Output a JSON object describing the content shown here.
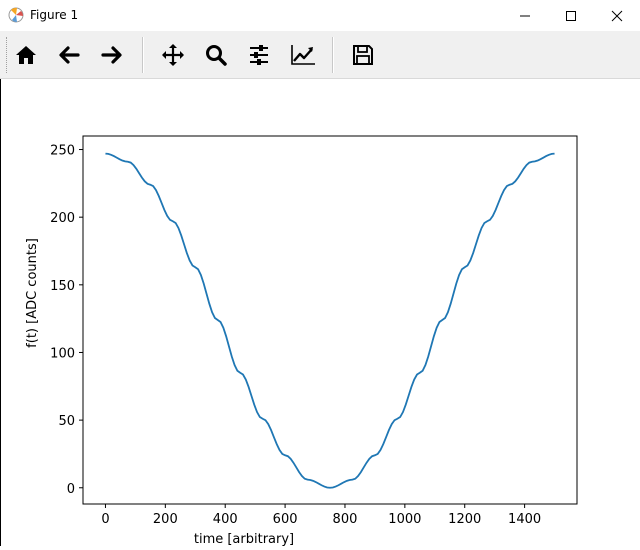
{
  "window": {
    "title": "Figure 1",
    "controls": [
      "minimize",
      "maximize",
      "close"
    ]
  },
  "toolbar": {
    "buttons": [
      {
        "name": "home",
        "icon": "home-icon"
      },
      {
        "name": "back",
        "icon": "arrow-left-icon"
      },
      {
        "name": "forward",
        "icon": "arrow-right-icon"
      },
      {
        "name": "pan",
        "icon": "move-icon"
      },
      {
        "name": "zoom",
        "icon": "magnifier-icon"
      },
      {
        "name": "subplots",
        "icon": "sliders-icon"
      },
      {
        "name": "customize",
        "icon": "chart-line-icon"
      },
      {
        "name": "save",
        "icon": "floppy-disk-icon"
      }
    ]
  },
  "chart_data": {
    "type": "line",
    "title": "",
    "xlabel": "time [arbitrary]",
    "ylabel": "f(t) [ADC counts]",
    "xlim": [
      -75,
      1575
    ],
    "ylim": [
      -12,
      260
    ],
    "xticks": [
      0,
      200,
      400,
      600,
      800,
      1000,
      1200,
      1400
    ],
    "yticks": [
      0,
      50,
      100,
      150,
      200,
      250
    ],
    "xticklabels": [
      "0",
      "200",
      "400",
      "600",
      "800",
      "1000",
      "1200",
      "1400"
    ],
    "yticklabels": [
      "0",
      "50",
      "100",
      "150",
      "200",
      "250"
    ],
    "grid": false,
    "line_color": "#1f77b4",
    "series": [
      {
        "x": [
          0,
          75,
          150,
          225,
          300,
          375,
          450,
          525,
          600,
          675,
          750,
          825,
          900,
          975,
          1050,
          1125,
          1200,
          1275,
          1350,
          1425,
          1500
        ],
        "y": [
          247,
          241,
          224,
          197,
          163,
          124,
          85,
          51,
          24,
          6,
          0,
          6,
          24,
          51,
          85,
          124,
          163,
          197,
          224,
          241,
          247
        ],
        "note_x_shifted": false
      }
    ]
  }
}
